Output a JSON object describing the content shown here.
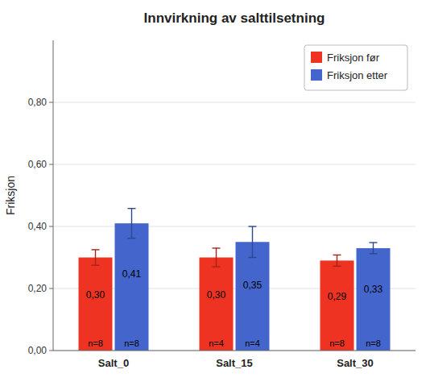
{
  "chart_data": {
    "type": "bar",
    "title": "Innvirkning av salttilsetning",
    "y_label": "Friksjon",
    "categories": [
      "Salt_0",
      "Salt_15",
      "Salt_30"
    ],
    "series": [
      {
        "name": "Friksjon før",
        "color": "#EE3322",
        "values": [
          0.3,
          0.3,
          0.29
        ],
        "errors": [
          0.025,
          0.03,
          0.018
        ],
        "value_labels": [
          "0,30",
          "0,30",
          "0,29"
        ],
        "n_labels": [
          "n=8",
          "n=4",
          "n=8"
        ]
      },
      {
        "name": "Friksjon etter",
        "color": "#4466CC",
        "values": [
          0.41,
          0.35,
          0.33
        ],
        "errors": [
          0.048,
          0.05,
          0.018
        ],
        "value_labels": [
          "0,41",
          "0,35",
          "0,33"
        ],
        "n_labels": [
          "n=8",
          "n=4",
          "n=8"
        ]
      }
    ],
    "ylim": [
      0.0,
      1.0
    ],
    "yticks": [
      {
        "value": 0.0,
        "label": "0,00"
      },
      {
        "value": 0.2,
        "label": "0,20"
      },
      {
        "value": 0.4,
        "label": "0,40"
      },
      {
        "value": 0.6,
        "label": "0,60"
      },
      {
        "value": 0.8,
        "label": "0,80"
      }
    ],
    "grid": true,
    "legend": "upper right",
    "data_labels": true
  }
}
